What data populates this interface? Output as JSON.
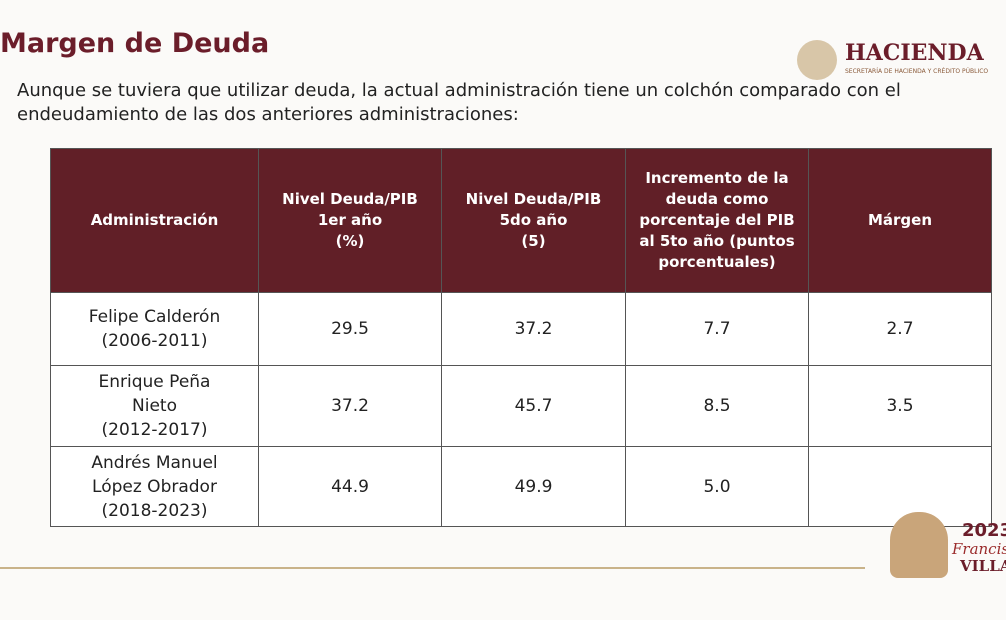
{
  "header": {
    "title": "Margen de Deuda",
    "subtitle": "Aunque se tuviera que utilizar deuda, la actual administración tiene un colchón comparado con el endeudamiento de las dos anteriores administraciones:",
    "logo": "HACIENDA",
    "logo_sub": "SECRETARÍA DE HACIENDA Y CRÉDITO PÚBLICO"
  },
  "table": {
    "columns": [
      "Administración",
      "Nivel Deuda/PIB\n1er año\n(%)",
      "Nivel Deuda/PIB\n5do año\n(5)",
      "Incremento de la deuda como porcentaje del PIB al 5to año (puntos porcentuales)",
      "Márgen"
    ],
    "rows": [
      [
        "Felipe Calderón\n(2006-2011)",
        "29.5",
        "37.2",
        "7.7",
        "2.7"
      ],
      [
        "Enrique Peña\nNieto\n(2012-2017)",
        "37.2",
        "45.7",
        "8.5",
        "3.5"
      ],
      [
        "Andrés Manuel\nLópez Obrador\n(2018-2023)",
        "44.9",
        "49.9",
        "5.0"
      ]
    ]
  },
  "footer": {
    "year": "2023",
    "name": "Francisco",
    "surname": "VILLA"
  }
}
